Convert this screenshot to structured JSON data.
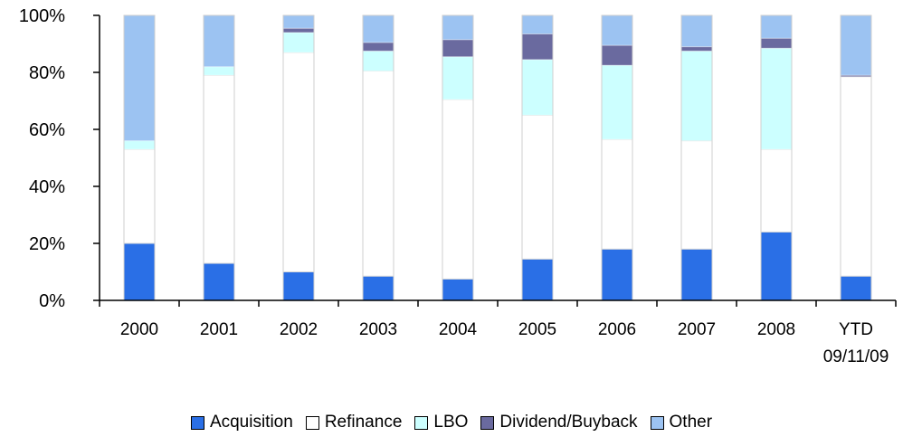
{
  "chart_data": {
    "type": "bar",
    "stacked": true,
    "categories": [
      "2000",
      "2001",
      "2002",
      "2003",
      "2004",
      "2005",
      "2006",
      "2007",
      "2008",
      "YTD\n09/11/09"
    ],
    "ylim": [
      0,
      100
    ],
    "yticks": [
      "0%",
      "20%",
      "40%",
      "60%",
      "80%",
      "100%"
    ],
    "ytick_values": [
      0,
      20,
      40,
      60,
      80,
      100
    ],
    "legend_position": "bottom",
    "grid": false,
    "series": [
      {
        "name": "Acquisition",
        "color": "#2A6FE6",
        "values": [
          20,
          13,
          10,
          8.5,
          7.5,
          14.5,
          18,
          18,
          24,
          8.5
        ]
      },
      {
        "name": "Refinance",
        "color": "#FFFFFF",
        "values": [
          33,
          66,
          77,
          72,
          63,
          50.5,
          38.5,
          38,
          29,
          70
        ]
      },
      {
        "name": "LBO",
        "color": "#CCFFFF",
        "values": [
          3,
          3,
          7,
          7,
          15,
          19.5,
          26,
          31.5,
          35.5,
          0
        ]
      },
      {
        "name": "Dividend/Buyback",
        "color": "#6A6A9F",
        "values": [
          0,
          0,
          1.5,
          3,
          6,
          9,
          7,
          1.5,
          3.5,
          0.5
        ]
      },
      {
        "name": "Other",
        "color": "#9CC3F2",
        "values": [
          44,
          18,
          4.5,
          9.5,
          8.5,
          6.5,
          10.5,
          11,
          8,
          21
        ]
      }
    ]
  }
}
